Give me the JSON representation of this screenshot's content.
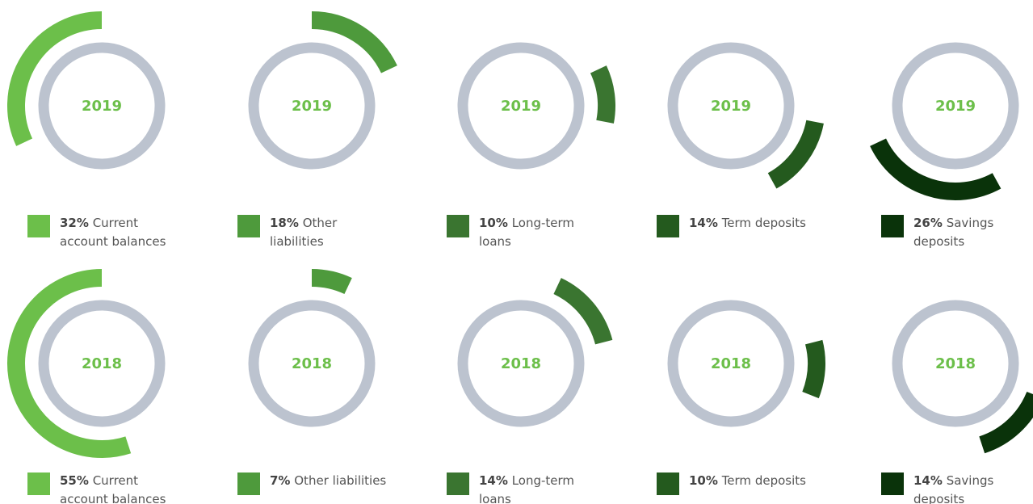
{
  "chart_data": [
    {
      "type": "donut",
      "title": "2019",
      "categories": [
        "Current account balances",
        "Other liabilities",
        "Long-term loans",
        "Term deposits",
        "Savings deposits"
      ],
      "values": [
        32,
        18,
        10,
        14,
        26
      ],
      "value_labels": [
        "32%",
        "18%",
        "10%",
        "14%",
        "26%"
      ],
      "colors": [
        "#6cbf4a",
        "#4e9a3c",
        "#3a7530",
        "#245a1e",
        "#0a330a"
      ]
    },
    {
      "type": "donut",
      "title": "2018",
      "categories": [
        "Current account balances",
        "Other liabilities",
        "Long-term loans",
        "Term deposits",
        "Savings deposits"
      ],
      "values": [
        55,
        7,
        14,
        10,
        14
      ],
      "value_labels": [
        "55%",
        "7%",
        "14%",
        "10%",
        "14%"
      ],
      "colors": [
        "#6cbf4a",
        "#4e9a3c",
        "#3a7530",
        "#245a1e",
        "#0a330a"
      ]
    }
  ]
}
